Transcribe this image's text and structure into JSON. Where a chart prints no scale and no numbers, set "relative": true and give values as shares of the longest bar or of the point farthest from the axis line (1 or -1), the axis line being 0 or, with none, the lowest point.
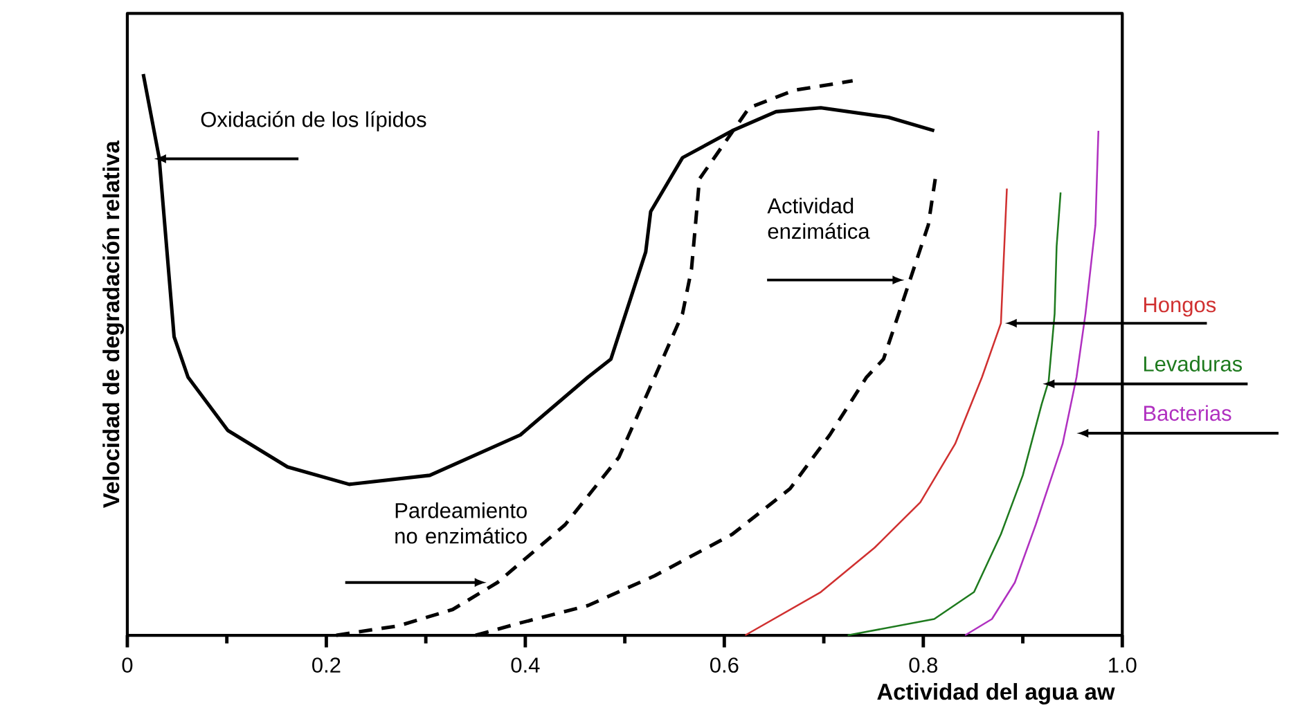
{
  "chart_data": {
    "type": "line",
    "relative": true,
    "xlabel": "Actividad del agua aw",
    "ylabel": "Velocidad de degradación relativa",
    "xlim": [
      0,
      1
    ],
    "xticks": [
      0,
      {
        "value": 0.1,
        "label": null
      },
      0.2,
      {
        "value": 0.3,
        "label": null
      },
      0.4,
      {
        "value": 0.5,
        "label": null
      },
      0.6,
      {
        "value": 0.7,
        "label": null
      },
      0.8,
      {
        "value": 0.9,
        "label": null
      },
      {
        "value": 1,
        "label": "1.0"
      }
    ],
    "series": [
      {
        "name": "Oxidación de los lípidos",
        "color": "#000000",
        "line_style": "solid",
        "x": [
          0.016,
          0.032,
          0.047,
          0.061,
          0.101,
          0.161,
          0.223,
          0.304,
          0.395,
          0.463,
          0.486,
          0.521,
          0.526,
          0.558,
          0.608,
          0.652,
          0.697,
          0.765,
          0.811
        ],
        "values": [
          1.0,
          0.851,
          0.532,
          0.46,
          0.365,
          0.3,
          0.269,
          0.285,
          0.357,
          0.46,
          0.492,
          0.683,
          0.755,
          0.851,
          0.899,
          0.933,
          0.94,
          0.923,
          0.899
        ]
      },
      {
        "name": "Pardeamiento no enzimático",
        "color": "#000000",
        "line_style": "dashed",
        "x": [
          0.21,
          0.273,
          0.327,
          0.372,
          0.44,
          0.494,
          0.53,
          0.558,
          0.567,
          0.571,
          0.575,
          0.625,
          0.67,
          0.729
        ],
        "values": [
          0,
          0.017,
          0.046,
          0.094,
          0.197,
          0.317,
          0.46,
          0.573,
          0.652,
          0.731,
          0.813,
          0.94,
          0.971,
          0.988
        ]
      },
      {
        "name": "Actividad enzimática",
        "color": "#000000",
        "line_style": "dashed",
        "x": [
          0.35,
          0.395,
          0.463,
          0.53,
          0.608,
          0.666,
          0.706,
          0.743,
          0.76,
          0.787,
          0.805,
          0.812
        ],
        "values": [
          0,
          0.022,
          0.053,
          0.106,
          0.18,
          0.261,
          0.357,
          0.46,
          0.492,
          0.635,
          0.731,
          0.813
        ]
      },
      {
        "name": "Hongos",
        "color": "#d03030",
        "line_style": "solid",
        "x": [
          0.621,
          0.697,
          0.751,
          0.797,
          0.832,
          0.859,
          0.878,
          0.882,
          0.884
        ],
        "values": [
          0,
          0.077,
          0.156,
          0.237,
          0.341,
          0.46,
          0.556,
          0.717,
          0.796
        ]
      },
      {
        "name": "Levaduras",
        "color": "#1e7a1e",
        "line_style": "solid",
        "x": [
          0.724,
          0.811,
          0.851,
          0.878,
          0.9,
          0.919,
          0.926,
          0.932,
          0.934,
          0.938
        ],
        "values": [
          0,
          0.029,
          0.077,
          0.18,
          0.285,
          0.412,
          0.453,
          0.573,
          0.693,
          0.789
        ]
      },
      {
        "name": "Bacterias",
        "color": "#b030c0",
        "line_style": "solid",
        "x": [
          0.842,
          0.869,
          0.892,
          0.913,
          0.94,
          0.954,
          0.963,
          0.973,
          0.976
        ],
        "values": [
          0,
          0.029,
          0.094,
          0.197,
          0.341,
          0.46,
          0.573,
          0.731,
          0.899
        ]
      }
    ]
  }
}
